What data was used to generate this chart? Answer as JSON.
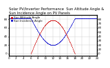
{
  "title": "Solar PV/Inverter Performance  Sun Altitude Angle & Sun Incidence Angle on PV Panels",
  "legend_labels": [
    "Sun Altitude Angle",
    "Sun Incidence Angle"
  ],
  "blue_color": "#0000cc",
  "red_color": "#cc0000",
  "background_color": "#ffffff",
  "grid_color": "#bbbbbb",
  "ylim": [
    -5,
    90
  ],
  "xlim": [
    0,
    24
  ],
  "yticks_left": [
    0,
    20,
    40,
    60,
    80
  ],
  "yticks_right": [
    0,
    10,
    20,
    30,
    40,
    50,
    60,
    70,
    80
  ],
  "xticks": [
    0,
    2,
    4,
    6,
    8,
    10,
    12,
    14,
    16,
    18,
    20,
    22,
    24
  ],
  "title_fontsize": 3.8,
  "legend_fontsize": 3.0,
  "tick_fontsize": 3.0,
  "marker_size": 0.8,
  "sun_rise": 6,
  "sun_set": 18,
  "sun_alt_peak": 78,
  "sun_inc_min": 20,
  "sun_inc_max": 82
}
